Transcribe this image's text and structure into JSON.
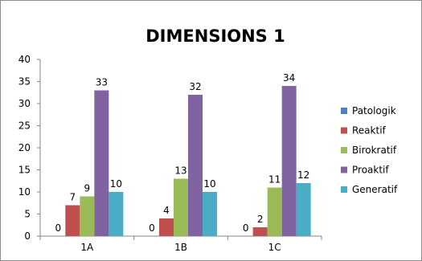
{
  "chart_data": {
    "type": "bar",
    "title": "DIMENSIONS 1",
    "categories": [
      "1A",
      "1B",
      "1C"
    ],
    "series": [
      {
        "name": "Patologik",
        "values": [
          0,
          0,
          0
        ],
        "color": "#4f81bd"
      },
      {
        "name": "Reaktif",
        "values": [
          7,
          4,
          2
        ],
        "color": "#c0504d"
      },
      {
        "name": "Birokratif",
        "values": [
          9,
          13,
          11
        ],
        "color": "#9bbb59"
      },
      {
        "name": "Proaktif",
        "values": [
          33,
          32,
          34
        ],
        "color": "#8064a2"
      },
      {
        "name": "Generatif",
        "values": [
          10,
          10,
          12
        ],
        "color": "#4bacc6"
      }
    ],
    "ylim": [
      0,
      40
    ],
    "yticks": [
      0,
      5,
      10,
      15,
      20,
      25,
      30,
      35,
      40
    ],
    "grid": false,
    "legend": "right",
    "data_labels": true
  }
}
